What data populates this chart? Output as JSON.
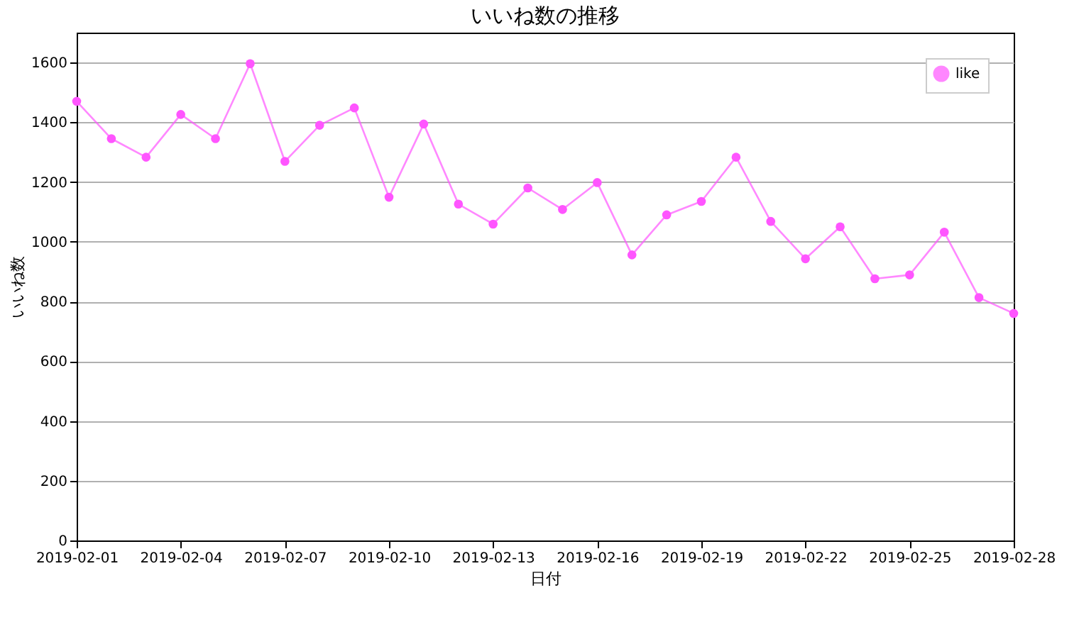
{
  "chart_data": {
    "type": "line",
    "title": "いいね数の推移",
    "xlabel": "日付",
    "ylabel": "いいね数",
    "x": [
      "2019-02-01",
      "2019-02-02",
      "2019-02-03",
      "2019-02-04",
      "2019-02-05",
      "2019-02-06",
      "2019-02-07",
      "2019-02-08",
      "2019-02-09",
      "2019-02-10",
      "2019-02-11",
      "2019-02-12",
      "2019-02-13",
      "2019-02-14",
      "2019-02-15",
      "2019-02-16",
      "2019-02-17",
      "2019-02-18",
      "2019-02-19",
      "2019-02-20",
      "2019-02-21",
      "2019-02-22",
      "2019-02-23",
      "2019-02-24",
      "2019-02-25",
      "2019-02-26",
      "2019-02-27",
      "2019-02-28"
    ],
    "series": [
      {
        "name": "like",
        "color": "#ff55ff",
        "values": [
          1470,
          1345,
          1283,
          1426,
          1345,
          1596,
          1269,
          1390,
          1448,
          1149,
          1394,
          1126,
          1059,
          1180,
          1108,
          1198,
          956,
          1090,
          1135,
          1283,
          1068,
          943,
          1050,
          876,
          889,
          1032,
          813,
          760
        ]
      }
    ],
    "xlim": [
      "2019-02-01",
      "2019-02-28"
    ],
    "xticks": [
      "2019-02-01",
      "2019-02-04",
      "2019-02-07",
      "2019-02-10",
      "2019-02-13",
      "2019-02-16",
      "2019-02-19",
      "2019-02-22",
      "2019-02-25",
      "2019-02-28"
    ],
    "ylim": [
      0,
      1700
    ],
    "yticks": [
      0,
      200,
      400,
      600,
      800,
      1000,
      1200,
      1400,
      1600
    ],
    "grid": "y",
    "legend": "top right",
    "marker": "circle",
    "line_style": "solid"
  }
}
